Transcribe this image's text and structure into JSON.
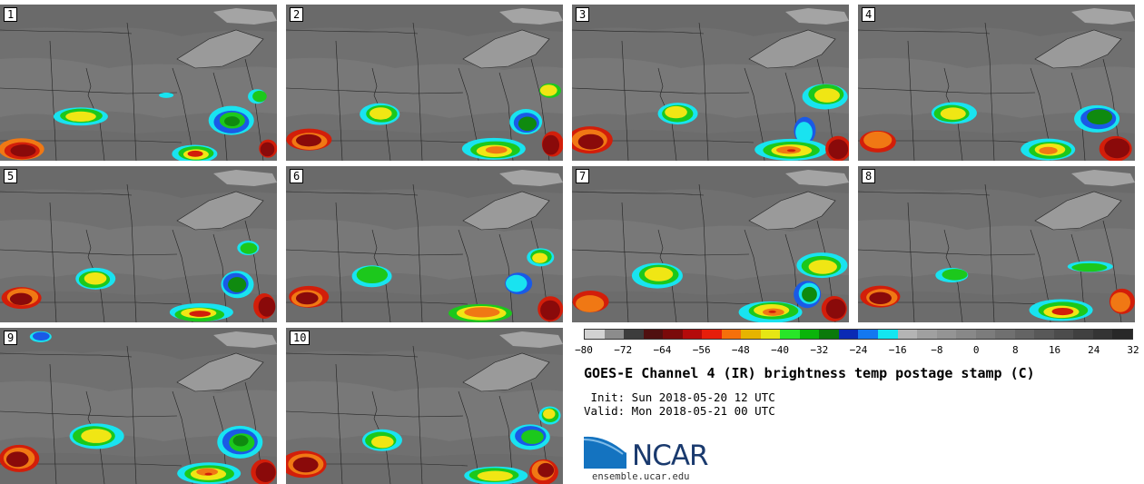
{
  "panels": [
    {
      "number": "1"
    },
    {
      "number": "2"
    },
    {
      "number": "3"
    },
    {
      "number": "4"
    },
    {
      "number": "5"
    },
    {
      "number": "6"
    },
    {
      "number": "7"
    },
    {
      "number": "8"
    },
    {
      "number": "9"
    },
    {
      "number": "10"
    }
  ],
  "colorbar": {
    "colors": [
      "#d2d2d2",
      "#8c8c8c",
      "#3c3c3c",
      "#501010",
      "#7a0a0a",
      "#b40a0a",
      "#e61e0a",
      "#f5700a",
      "#e6b400",
      "#e6e614",
      "#28e628",
      "#0ab40a",
      "#0a7a0a",
      "#0a2ab4",
      "#1478f0",
      "#14e6f0",
      "#b4b4b4",
      "#a0a0a0",
      "#949494",
      "#888888",
      "#7c7c7c",
      "#707070",
      "#646464",
      "#585858",
      "#4c4c4c",
      "#404040",
      "#343434",
      "#282828"
    ],
    "tick_labels": [
      "−80",
      "−72",
      "−64",
      "−56",
      "−48",
      "−40",
      "−32",
      "−24",
      "−16",
      "−8",
      "0",
      "8",
      "16",
      "24",
      "32"
    ]
  },
  "title": "GOES-E Channel 4 (IR) brightness temp postage stamp (C)",
  "init_line": " Init: Sun 2018-05-20 12 UTC",
  "valid_line": "Valid: Mon 2018-05-21 00 UTC",
  "logo_text": "NCAR",
  "site": "ensemble.ucar.edu"
}
